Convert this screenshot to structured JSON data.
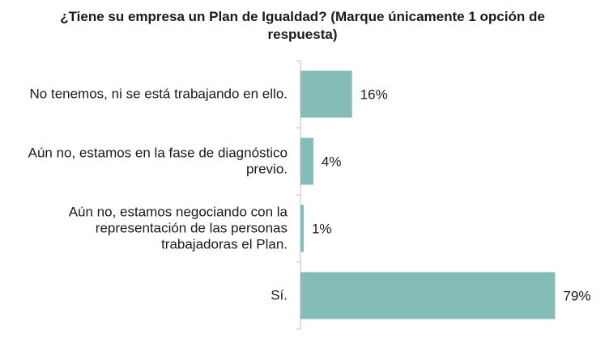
{
  "chart_data": {
    "type": "bar",
    "orientation": "horizontal",
    "title": "¿Tiene su empresa un Plan de Igualdad? (Marque únicamente 1 opción de respuesta)",
    "categories": [
      "No tenemos, ni se está trabajando en ello.",
      "Aún no, estamos en la fase de diagnóstico previo.",
      "Aún no, estamos negociando con la representación de las personas trabajadoras el Plan.",
      "Sí."
    ],
    "category_lines": [
      [
        "No tenemos, ni se está trabajando en ello."
      ],
      [
        "Aún no, estamos en la fase de diagnóstico",
        "previo."
      ],
      [
        "Aún no, estamos negociando con la",
        "representación de las personas",
        "trabajadoras el Plan."
      ],
      [
        "Sí."
      ]
    ],
    "values": [
      16,
      4,
      1,
      79
    ],
    "value_labels": [
      "16%",
      "4%",
      "1%",
      "79%"
    ],
    "unit": "%",
    "xlim": [
      0,
      100
    ],
    "grid": false,
    "legend": "none",
    "bar_color": "#84bdb8",
    "axis_color": "#bfbfbf"
  }
}
